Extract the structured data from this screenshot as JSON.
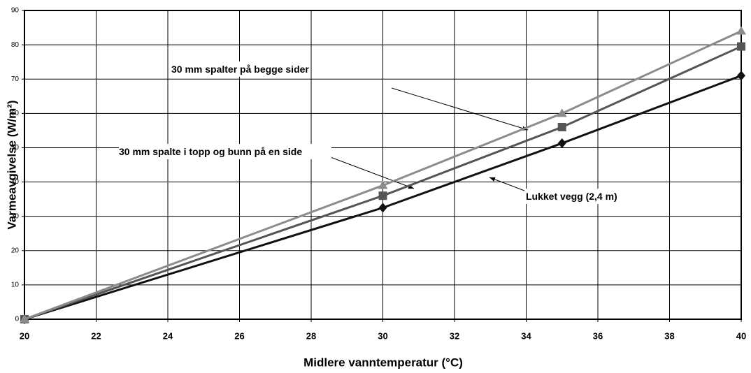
{
  "chart_data": {
    "type": "line",
    "x_label": "Midlere vanntemperatur (°C)",
    "y_label": "Varmeavgivelse (W/m²)",
    "x": [
      20,
      30,
      35,
      40
    ],
    "series": [
      {
        "name": "30 mm spalter på begge sider",
        "color": "#8c8c8c",
        "marker": "triangle",
        "values": [
          0,
          39,
          60,
          84
        ]
      },
      {
        "name": "30 mm spalte i topp og bunn på en side",
        "color": "#555555",
        "marker": "square",
        "values": [
          0,
          36,
          56,
          79.5
        ]
      },
      {
        "name": "Lukket vegg (2,4 m)",
        "color": "#111111",
        "marker": "diamond",
        "values": [
          0,
          32.5,
          51.3,
          71
        ]
      }
    ],
    "xlim": [
      20,
      40
    ],
    "xticks": [
      20,
      22,
      24,
      26,
      28,
      30,
      32,
      34,
      36,
      38,
      40
    ],
    "ylim": [
      0,
      90
    ],
    "yticks": [
      0,
      10,
      20,
      30,
      40,
      50,
      60,
      70,
      80,
      90
    ],
    "grid": true
  }
}
